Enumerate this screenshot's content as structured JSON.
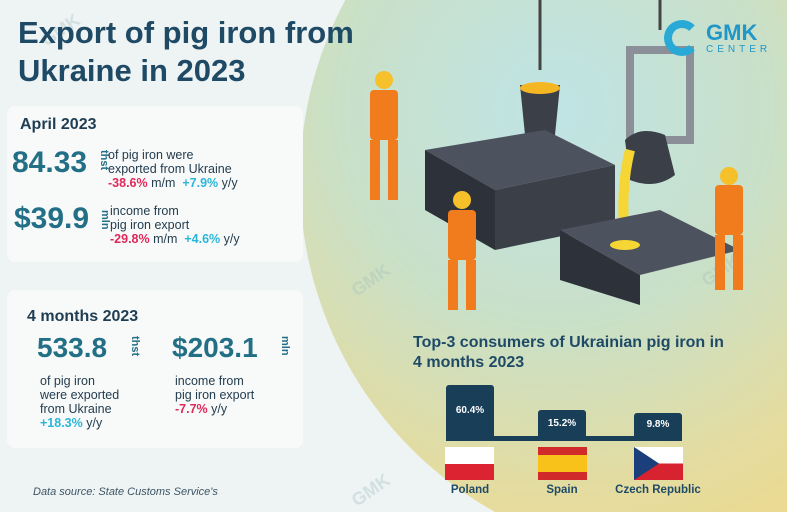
{
  "title": "Export of pig iron from Ukraine in 2023",
  "logo": {
    "line1": "GMK",
    "line2": "CENTER"
  },
  "april": {
    "heading": "April 2023",
    "volume": {
      "value": "84.33",
      "unit": "thst",
      "text1": "of pig iron were",
      "text2": "exported from Ukraine",
      "mm": "-38.6%",
      "mm_label": "m/m",
      "yy": "+7.9%",
      "yy_label": "y/y"
    },
    "income": {
      "value": "$39.9",
      "unit": "mln",
      "text1": "income from",
      "text2": "pig iron export",
      "mm": "-29.8%",
      "mm_label": "m/m",
      "yy": "+4.6%",
      "yy_label": "y/y"
    }
  },
  "months": {
    "heading": "4 months 2023",
    "volume": {
      "value": "533.8",
      "unit": "thst",
      "text1": "of pig iron",
      "text2": "were exported",
      "text3": "from Ukraine",
      "yy": "+18.3%",
      "yy_label": "y/y"
    },
    "income": {
      "value": "$203.1",
      "unit": "mln",
      "text1": "income from",
      "text2": "pig iron export",
      "yy": "-7.7%",
      "yy_label": "y/y"
    }
  },
  "source": "Data source: State Customs Service's",
  "chart_data": {
    "type": "bar",
    "title": "Top-3 consumers of Ukrainian pig iron in 4 months 2023",
    "categories": [
      "Poland",
      "Spain",
      "Czech Republic"
    ],
    "values": [
      60.4,
      15.2,
      9.8
    ],
    "labels": [
      "60.4%",
      "15.2%",
      "9.8%"
    ],
    "unit": "%"
  },
  "colors": {
    "bar": "#183e58",
    "negative": "#e0285a",
    "positive": "#2bb6d8",
    "title": "#1f4a66"
  }
}
